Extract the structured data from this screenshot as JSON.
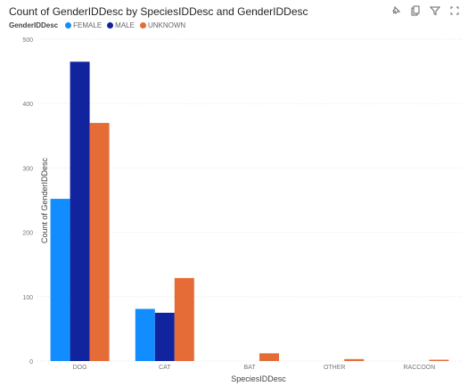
{
  "toolbar": {
    "pin_icon": "pin-icon",
    "copy_icon": "copy-icon",
    "filter_icon": "filter-icon",
    "focus_icon": "focus-mode-icon"
  },
  "chart_data": {
    "type": "bar",
    "title": "Count of GenderIDDesc by SpeciesIDDesc and GenderIDDesc",
    "legend_title": "GenderIDDesc",
    "legend_position": "top-left",
    "xlabel": "SpeciesIDDesc",
    "ylabel": "Count of GenderIDDesc",
    "ylim": [
      0,
      500
    ],
    "yticks": [
      0,
      100,
      200,
      300,
      400,
      500
    ],
    "grid": true,
    "categories": [
      "DOG",
      "CAT",
      "BAT",
      "OTHER",
      "RACCOON"
    ],
    "series": [
      {
        "name": "FEMALE",
        "color": "#118DFF",
        "values": [
          252,
          81,
          0,
          0,
          0
        ]
      },
      {
        "name": "MALE",
        "color": "#12239E",
        "values": [
          465,
          75,
          0,
          0,
          0
        ]
      },
      {
        "name": "UNKNOWN",
        "color": "#E66C37",
        "values": [
          370,
          129,
          12,
          3,
          2
        ]
      }
    ]
  }
}
